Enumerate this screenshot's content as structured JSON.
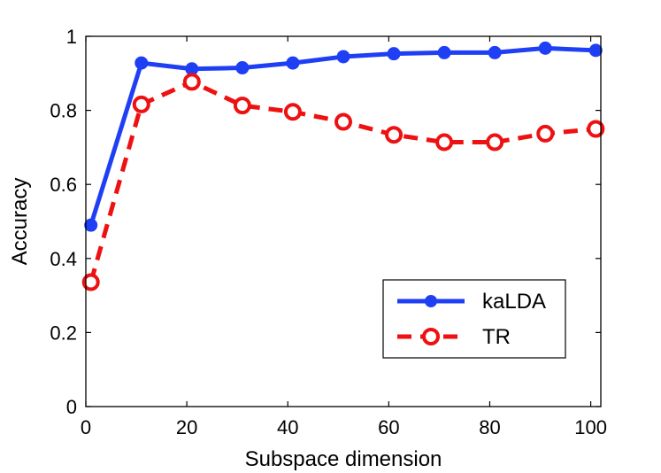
{
  "chart_data": {
    "type": "line",
    "title": "",
    "xlabel": "Subspace dimension",
    "ylabel": "Accuracy",
    "xlim": [
      0,
      102
    ],
    "ylim": [
      0,
      1
    ],
    "xticks": [
      0,
      20,
      40,
      60,
      80,
      100
    ],
    "yticks": [
      0,
      0.2,
      0.4,
      0.6,
      0.8,
      1
    ],
    "xtick_labels": [
      "0",
      "20",
      "40",
      "60",
      "80",
      "100"
    ],
    "ytick_labels": [
      "0",
      "0.2",
      "0.4",
      "0.6",
      "0.8",
      "1"
    ],
    "grid": false,
    "legend_position": "lower-right",
    "x": [
      1,
      11,
      21,
      31,
      41,
      51,
      61,
      71,
      81,
      91,
      101
    ],
    "series": [
      {
        "name": "kaLDA",
        "color": "#1f3ff5",
        "line_style": "solid",
        "marker": "filled-circle",
        "values": [
          0.49,
          0.928,
          0.912,
          0.915,
          0.928,
          0.945,
          0.953,
          0.956,
          0.956,
          0.968,
          0.962
        ]
      },
      {
        "name": "TR",
        "color": "#ee1111",
        "line_style": "dashed",
        "marker": "open-circle",
        "values": [
          0.336,
          0.816,
          0.877,
          0.813,
          0.796,
          0.769,
          0.734,
          0.714,
          0.714,
          0.737,
          0.75
        ]
      }
    ]
  }
}
